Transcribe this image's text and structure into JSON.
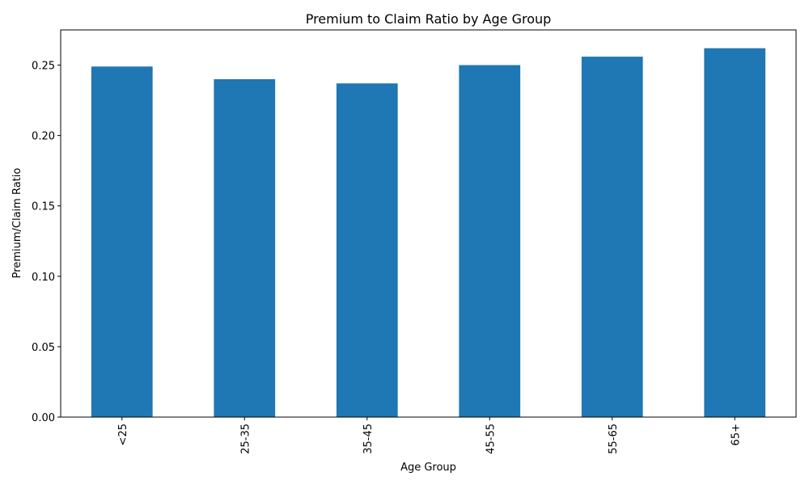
{
  "chart_data": {
    "type": "bar",
    "title": "Premium to Claim Ratio by Age Group",
    "xlabel": "Age Group",
    "ylabel": "Premium/Claim Ratio",
    "categories": [
      "<25",
      "25-35",
      "35-45",
      "45-55",
      "55-65",
      "65+"
    ],
    "values": [
      0.249,
      0.24,
      0.237,
      0.25,
      0.256,
      0.262
    ],
    "ylim": [
      0,
      0.275
    ],
    "yticks": [
      0.0,
      0.05,
      0.1,
      0.15,
      0.2,
      0.25
    ],
    "ytick_labels": [
      "0.00",
      "0.05",
      "0.10",
      "0.15",
      "0.20",
      "0.25"
    ],
    "bar_color": "#1f77b4",
    "grid": false,
    "legend": "none"
  }
}
